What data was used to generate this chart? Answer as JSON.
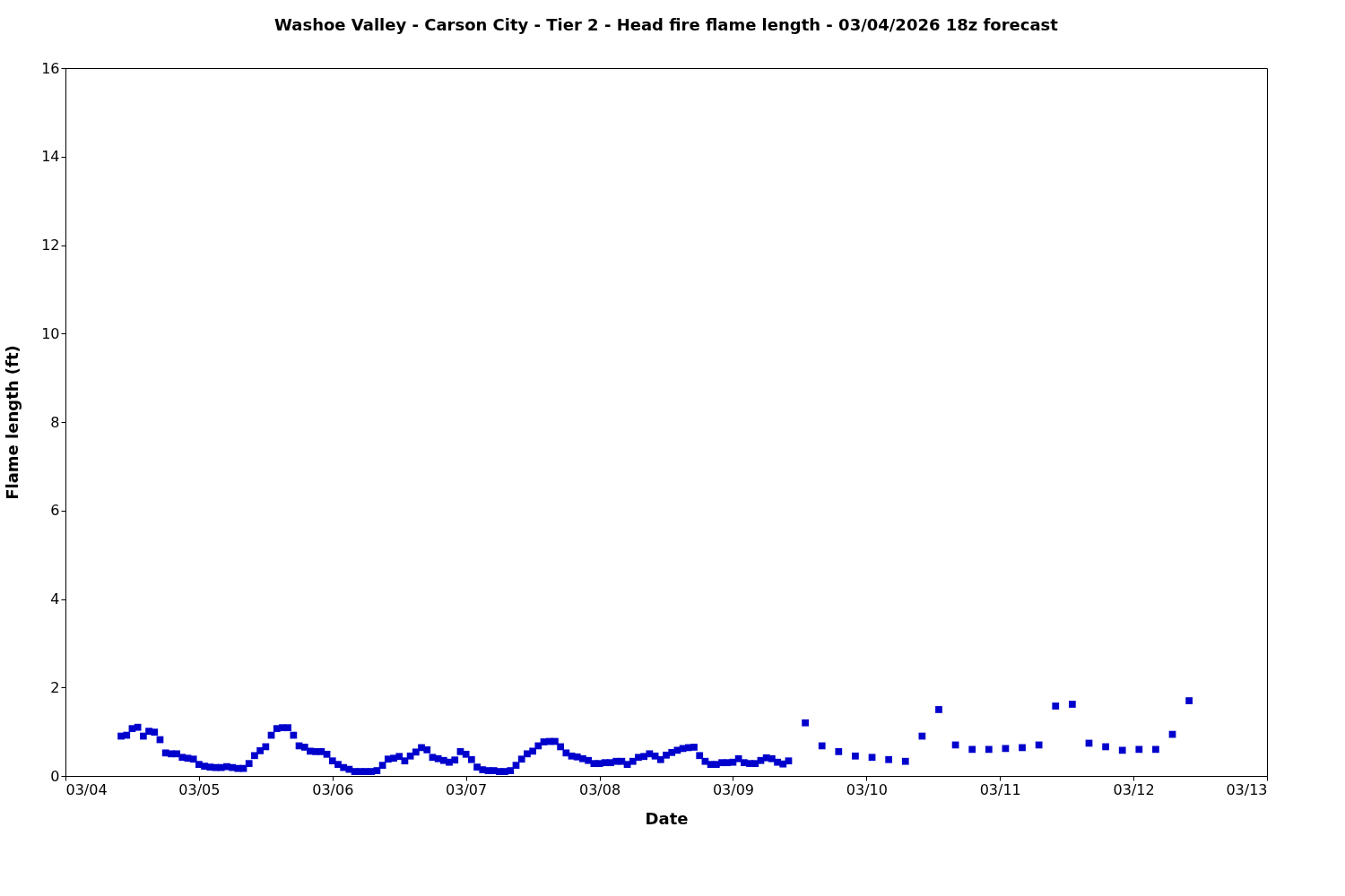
{
  "chart_data": {
    "type": "scatter",
    "title": "Washoe Valley - Carson City - Tier 2 - Head fire flame length - 03/04/2026 18z forecast",
    "xlabel": "Date",
    "ylabel": "Flame length (ft)",
    "marker": "square",
    "grid": false,
    "legend": false,
    "x": [
      "2026-03-04T10:00",
      "2026-03-04T11:00",
      "2026-03-04T12:00",
      "2026-03-04T13:00",
      "2026-03-04T14:00",
      "2026-03-04T15:00",
      "2026-03-04T16:00",
      "2026-03-04T17:00",
      "2026-03-04T18:00",
      "2026-03-04T19:00",
      "2026-03-04T20:00",
      "2026-03-04T21:00",
      "2026-03-04T22:00",
      "2026-03-04T23:00",
      "2026-03-05T00:00",
      "2026-03-05T01:00",
      "2026-03-05T02:00",
      "2026-03-05T03:00",
      "2026-03-05T04:00",
      "2026-03-05T05:00",
      "2026-03-05T06:00",
      "2026-03-05T07:00",
      "2026-03-05T08:00",
      "2026-03-05T09:00",
      "2026-03-05T10:00",
      "2026-03-05T11:00",
      "2026-03-05T12:00",
      "2026-03-05T13:00",
      "2026-03-05T14:00",
      "2026-03-05T15:00",
      "2026-03-05T16:00",
      "2026-03-05T17:00",
      "2026-03-05T18:00",
      "2026-03-05T19:00",
      "2026-03-05T20:00",
      "2026-03-05T21:00",
      "2026-03-05T22:00",
      "2026-03-05T23:00",
      "2026-03-06T00:00",
      "2026-03-06T01:00",
      "2026-03-06T02:00",
      "2026-03-06T03:00",
      "2026-03-06T04:00",
      "2026-03-06T05:00",
      "2026-03-06T06:00",
      "2026-03-06T07:00",
      "2026-03-06T08:00",
      "2026-03-06T09:00",
      "2026-03-06T10:00",
      "2026-03-06T11:00",
      "2026-03-06T12:00",
      "2026-03-06T13:00",
      "2026-03-06T14:00",
      "2026-03-06T15:00",
      "2026-03-06T16:00",
      "2026-03-06T17:00",
      "2026-03-06T18:00",
      "2026-03-06T19:00",
      "2026-03-06T20:00",
      "2026-03-06T21:00",
      "2026-03-06T22:00",
      "2026-03-06T23:00",
      "2026-03-07T00:00",
      "2026-03-07T01:00",
      "2026-03-07T02:00",
      "2026-03-07T03:00",
      "2026-03-07T04:00",
      "2026-03-07T05:00",
      "2026-03-07T06:00",
      "2026-03-07T07:00",
      "2026-03-07T08:00",
      "2026-03-07T09:00",
      "2026-03-07T10:00",
      "2026-03-07T11:00",
      "2026-03-07T12:00",
      "2026-03-07T13:00",
      "2026-03-07T14:00",
      "2026-03-07T15:00",
      "2026-03-07T16:00",
      "2026-03-07T17:00",
      "2026-03-07T18:00",
      "2026-03-07T19:00",
      "2026-03-07T20:00",
      "2026-03-07T21:00",
      "2026-03-07T22:00",
      "2026-03-07T23:00",
      "2026-03-08T00:00",
      "2026-03-08T01:00",
      "2026-03-08T02:00",
      "2026-03-08T03:00",
      "2026-03-08T04:00",
      "2026-03-08T05:00",
      "2026-03-08T06:00",
      "2026-03-08T07:00",
      "2026-03-08T08:00",
      "2026-03-08T09:00",
      "2026-03-08T10:00",
      "2026-03-08T11:00",
      "2026-03-08T12:00",
      "2026-03-08T13:00",
      "2026-03-08T14:00",
      "2026-03-08T15:00",
      "2026-03-08T16:00",
      "2026-03-08T17:00",
      "2026-03-08T18:00",
      "2026-03-08T19:00",
      "2026-03-08T20:00",
      "2026-03-08T21:00",
      "2026-03-08T22:00",
      "2026-03-08T23:00",
      "2026-03-09T00:00",
      "2026-03-09T01:00",
      "2026-03-09T02:00",
      "2026-03-09T03:00",
      "2026-03-09T04:00",
      "2026-03-09T05:00",
      "2026-03-09T06:00",
      "2026-03-09T07:00",
      "2026-03-09T08:00",
      "2026-03-09T09:00",
      "2026-03-09T10:00",
      "2026-03-09T13:00",
      "2026-03-09T16:00",
      "2026-03-09T19:00",
      "2026-03-09T22:00",
      "2026-03-10T01:00",
      "2026-03-10T04:00",
      "2026-03-10T07:00",
      "2026-03-10T10:00",
      "2026-03-10T13:00",
      "2026-03-10T16:00",
      "2026-03-10T19:00",
      "2026-03-10T22:00",
      "2026-03-11T01:00",
      "2026-03-11T04:00",
      "2026-03-11T07:00",
      "2026-03-11T10:00",
      "2026-03-11T13:00",
      "2026-03-11T16:00",
      "2026-03-11T19:00",
      "2026-03-11T22:00",
      "2026-03-12T01:00",
      "2026-03-12T04:00",
      "2026-03-12T07:00",
      "2026-03-12T10:00"
    ],
    "series": [
      {
        "color": "#0000cc",
        "values": [
          0.9,
          0.92,
          1.07,
          1.1,
          0.9,
          1.01,
          0.99,
          0.82,
          0.52,
          0.5,
          0.5,
          0.42,
          0.4,
          0.38,
          0.26,
          0.22,
          0.2,
          0.19,
          0.19,
          0.21,
          0.19,
          0.17,
          0.17,
          0.28,
          0.46,
          0.57,
          0.66,
          0.92,
          1.07,
          1.09,
          1.09,
          0.92,
          0.68,
          0.65,
          0.56,
          0.55,
          0.55,
          0.49,
          0.34,
          0.26,
          0.19,
          0.15,
          0.1,
          0.1,
          0.1,
          0.1,
          0.12,
          0.24,
          0.38,
          0.4,
          0.44,
          0.34,
          0.45,
          0.54,
          0.64,
          0.59,
          0.42,
          0.39,
          0.35,
          0.31,
          0.36,
          0.55,
          0.49,
          0.37,
          0.2,
          0.14,
          0.12,
          0.12,
          0.1,
          0.1,
          0.12,
          0.24,
          0.38,
          0.5,
          0.56,
          0.68,
          0.77,
          0.78,
          0.78,
          0.66,
          0.52,
          0.45,
          0.43,
          0.39,
          0.35,
          0.28,
          0.28,
          0.3,
          0.3,
          0.33,
          0.33,
          0.26,
          0.33,
          0.42,
          0.44,
          0.5,
          0.45,
          0.37,
          0.47,
          0.53,
          0.58,
          0.62,
          0.64,
          0.65,
          0.46,
          0.33,
          0.26,
          0.26,
          0.3,
          0.3,
          0.31,
          0.39,
          0.3,
          0.28,
          0.28,
          0.35,
          0.41,
          0.39,
          0.31,
          0.27,
          0.34,
          1.2,
          0.68,
          0.55,
          0.45,
          0.42,
          0.37,
          0.33,
          0.9,
          1.5,
          0.7,
          0.6,
          0.6,
          0.62,
          0.64,
          0.7,
          1.58,
          1.62,
          0.74,
          0.66,
          0.58,
          0.6,
          0.6,
          0.94,
          1.7
        ]
      }
    ],
    "xlim": [
      "2026-03-04",
      "2026-03-13"
    ],
    "xticks": [
      {
        "value": "2026-03-04",
        "label": "03/04"
      },
      {
        "value": "2026-03-05",
        "label": "03/05"
      },
      {
        "value": "2026-03-06",
        "label": "03/06"
      },
      {
        "value": "2026-03-07",
        "label": "03/07"
      },
      {
        "value": "2026-03-08",
        "label": "03/08"
      },
      {
        "value": "2026-03-09",
        "label": "03/09"
      },
      {
        "value": "2026-03-10",
        "label": "03/10"
      },
      {
        "value": "2026-03-11",
        "label": "03/11"
      },
      {
        "value": "2026-03-12",
        "label": "03/12"
      },
      {
        "value": "2026-03-13",
        "label": "03/13"
      }
    ],
    "ylim": [
      0,
      16
    ],
    "yticks": [
      0,
      2,
      4,
      6,
      8,
      10,
      12,
      14,
      16
    ]
  }
}
